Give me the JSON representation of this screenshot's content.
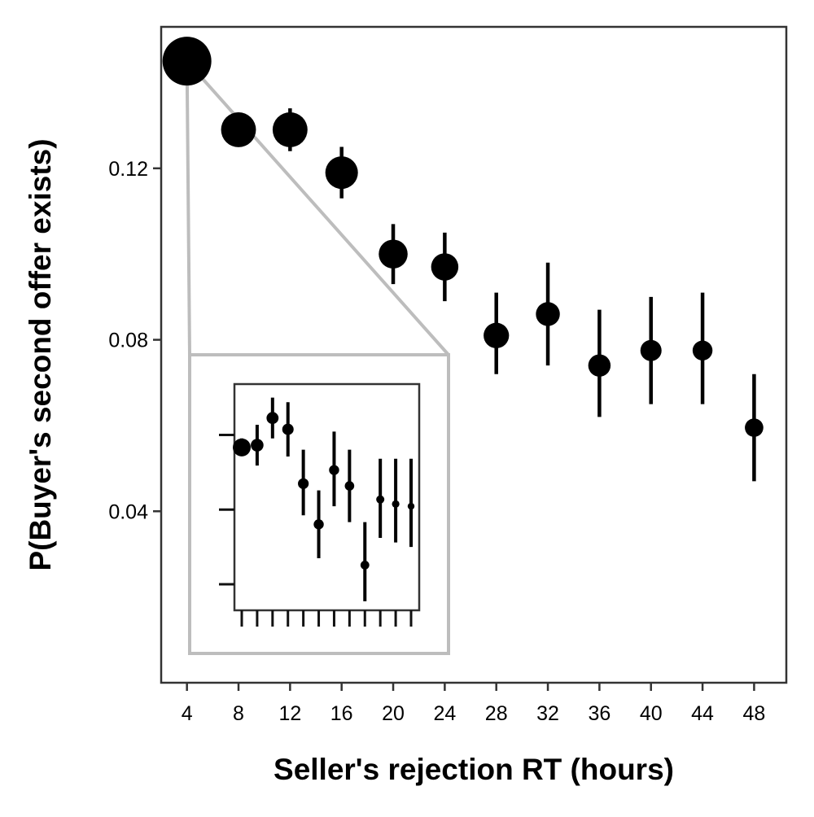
{
  "chart_data": [
    {
      "type": "scatter",
      "title": "",
      "xlabel": "Seller's rejection RT (hours)",
      "ylabel": "P(Buyer's second offer exists)",
      "x_ticks": [
        "4",
        "8",
        "12",
        "16",
        "20",
        "24",
        "28",
        "32",
        "36",
        "40",
        "44",
        "48"
      ],
      "y_ticks": [
        "0.04",
        "0.08",
        "0.12"
      ],
      "xlim": [
        2,
        50.5
      ],
      "ylim": [
        0.0,
        0.153
      ],
      "grid": false,
      "legend": "none",
      "marker_color": "#000000",
      "series": [
        {
          "error_bars": true,
          "points": [
            {
              "x": 4,
              "y": 0.145,
              "low": 0.145,
              "high": 0.145,
              "weight": 1.0
            },
            {
              "x": 8,
              "y": 0.129,
              "low": 0.125,
              "high": 0.133,
              "weight": 0.45
            },
            {
              "x": 12,
              "y": 0.129,
              "low": 0.124,
              "high": 0.134,
              "weight": 0.45
            },
            {
              "x": 16,
              "y": 0.119,
              "low": 0.113,
              "high": 0.125,
              "weight": 0.38
            },
            {
              "x": 20,
              "y": 0.1,
              "low": 0.093,
              "high": 0.107,
              "weight": 0.28
            },
            {
              "x": 24,
              "y": 0.097,
              "low": 0.089,
              "high": 0.105,
              "weight": 0.24
            },
            {
              "x": 28,
              "y": 0.081,
              "low": 0.072,
              "high": 0.091,
              "weight": 0.2
            },
            {
              "x": 32,
              "y": 0.086,
              "low": 0.074,
              "high": 0.098,
              "weight": 0.17
            },
            {
              "x": 36,
              "y": 0.074,
              "low": 0.062,
              "high": 0.087,
              "weight": 0.14
            },
            {
              "x": 40,
              "y": 0.0775,
              "low": 0.065,
              "high": 0.09,
              "weight": 0.12
            },
            {
              "x": 44,
              "y": 0.0775,
              "low": 0.065,
              "high": 0.091,
              "weight": 0.1
            },
            {
              "x": 48,
              "y": 0.0595,
              "low": 0.047,
              "high": 0.072,
              "weight": 0.08
            }
          ]
        }
      ]
    },
    {
      "type": "scatter",
      "title": "",
      "inset": true,
      "note": "zoom of first bin (x = 4 hours); ticks unlabeled",
      "x_tick_count": 12,
      "y_tick_count": 3,
      "ylim": [
        0,
        1
      ],
      "series": [
        {
          "error_bars": true,
          "points": [
            {
              "i": 1,
              "y": 0.72,
              "low": 0.69,
              "high": 0.76,
              "weight": 1.0
            },
            {
              "i": 2,
              "y": 0.73,
              "low": 0.64,
              "high": 0.82,
              "weight": 0.6
            },
            {
              "i": 3,
              "y": 0.85,
              "low": 0.76,
              "high": 0.94,
              "weight": 0.55
            },
            {
              "i": 4,
              "y": 0.8,
              "low": 0.68,
              "high": 0.92,
              "weight": 0.5
            },
            {
              "i": 5,
              "y": 0.56,
              "low": 0.42,
              "high": 0.71,
              "weight": 0.45
            },
            {
              "i": 6,
              "y": 0.38,
              "low": 0.23,
              "high": 0.53,
              "weight": 0.4
            },
            {
              "i": 7,
              "y": 0.62,
              "low": 0.46,
              "high": 0.79,
              "weight": 0.4
            },
            {
              "i": 8,
              "y": 0.55,
              "low": 0.39,
              "high": 0.71,
              "weight": 0.35
            },
            {
              "i": 9,
              "y": 0.2,
              "low": 0.04,
              "high": 0.39,
              "weight": 0.3
            },
            {
              "i": 10,
              "y": 0.49,
              "low": 0.32,
              "high": 0.67,
              "weight": 0.25
            },
            {
              "i": 11,
              "y": 0.47,
              "low": 0.3,
              "high": 0.67,
              "weight": 0.2
            },
            {
              "i": 12,
              "y": 0.46,
              "low": 0.28,
              "high": 0.67,
              "weight": 0.15
            }
          ]
        }
      ]
    }
  ]
}
